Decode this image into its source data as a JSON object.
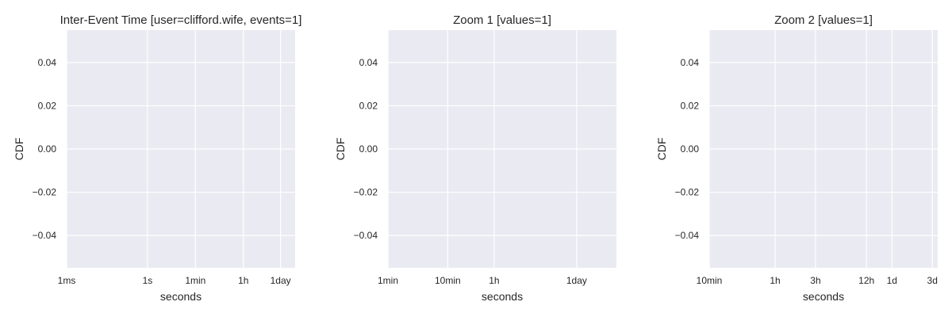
{
  "chart_data": [
    {
      "type": "line",
      "title": "Inter-Event Time [user=clifford.wife, events=1]",
      "xlabel": "seconds",
      "ylabel": "CDF",
      "x_scale": "log",
      "xlim": [
        0.001,
        300000
      ],
      "ylim": [
        -0.055,
        0.055
      ],
      "x_ticks": [
        {
          "value": 0.001,
          "label": "1ms"
        },
        {
          "value": 1,
          "label": "1s"
        },
        {
          "value": 60,
          "label": "1min"
        },
        {
          "value": 3600,
          "label": "1h"
        },
        {
          "value": 86400,
          "label": "1day"
        }
      ],
      "y_ticks": [
        0.04,
        0.02,
        0.0,
        -0.02,
        -0.04
      ],
      "y_tick_labels": [
        "0.04",
        "0.02",
        "0.00",
        "−0.02",
        "−0.04"
      ],
      "grid": true,
      "series": []
    },
    {
      "type": "line",
      "title": "Zoom 1 [values=1]",
      "xlabel": "seconds",
      "ylabel": "CDF",
      "x_scale": "log",
      "xlim": [
        60,
        400000
      ],
      "ylim": [
        -0.055,
        0.055
      ],
      "x_ticks": [
        {
          "value": 60,
          "label": "1min"
        },
        {
          "value": 600,
          "label": "10min"
        },
        {
          "value": 3600,
          "label": "1h"
        },
        {
          "value": 86400,
          "label": "1day"
        }
      ],
      "y_ticks": [
        0.04,
        0.02,
        0.0,
        -0.02,
        -0.04
      ],
      "y_tick_labels": [
        "0.04",
        "0.02",
        "0.00",
        "−0.02",
        "−0.04"
      ],
      "grid": true,
      "series": []
    },
    {
      "type": "line",
      "title": "Zoom 2 [values=1]",
      "xlabel": "seconds",
      "ylabel": "CDF",
      "x_scale": "log",
      "xlim": [
        600,
        300000
      ],
      "ylim": [
        -0.055,
        0.055
      ],
      "x_ticks": [
        {
          "value": 600,
          "label": "10min"
        },
        {
          "value": 3600,
          "label": "1h"
        },
        {
          "value": 10800,
          "label": "3h"
        },
        {
          "value": 43200,
          "label": "12h"
        },
        {
          "value": 86400,
          "label": "1d"
        },
        {
          "value": 259200,
          "label": "3d"
        }
      ],
      "y_ticks": [
        0.04,
        0.02,
        0.0,
        -0.02,
        -0.04
      ],
      "y_tick_labels": [
        "0.04",
        "0.02",
        "0.00",
        "−0.02",
        "−0.04"
      ],
      "grid": true,
      "series": []
    }
  ],
  "colors": {
    "plot_background": "#EAEAF2",
    "grid": "#FFFFFF",
    "text": "#262626"
  }
}
